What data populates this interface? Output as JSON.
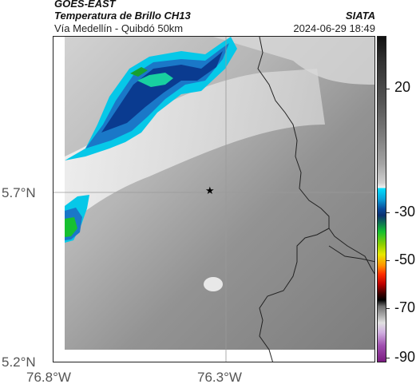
{
  "header": {
    "satellite": "GOES-EAST",
    "product": "Temperatura de Brillo CH13",
    "route": "Vía Medellín - Quibdó 50km",
    "organization": "SIATA",
    "timestamp": "2024-06-29 18:49"
  },
  "map": {
    "lat_ticks": [
      "5.7°N",
      "5.2°N"
    ],
    "lon_ticks": [
      "76.8°W",
      "76.3°W"
    ],
    "marker": "★",
    "colors": {
      "land_gray": "#8c8c8c",
      "border": "#222222"
    }
  },
  "colorbar": {
    "labels": [
      "20",
      "-30",
      "-50",
      "-70",
      "-90"
    ],
    "colors": [
      "#1a1a1a",
      "#4a4a4a",
      "#7a7a7a",
      "#ababab",
      "#dcdcdc",
      "#00e5ff",
      "#0a4a9a",
      "#15c030",
      "#e8e800",
      "#ff5000",
      "#500000",
      "#b0b0b0",
      "#8a2090"
    ]
  }
}
